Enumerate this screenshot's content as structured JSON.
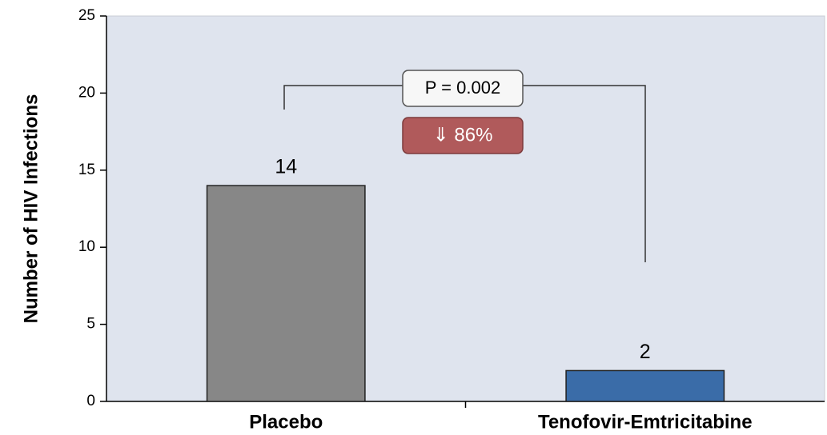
{
  "chart_data": {
    "type": "bar",
    "y_label": "Number of HIV Infections",
    "categories": [
      "Placebo",
      "Tenofovir-Emtricitabine"
    ],
    "values": [
      14,
      2
    ],
    "colors": [
      "#878787",
      "#3a6ca8"
    ],
    "ylim": [
      0,
      25
    ],
    "yticks": [
      0,
      5,
      10,
      15,
      20,
      25
    ],
    "annotations": [
      "P = 0.002",
      "⇓ 86%"
    ]
  }
}
